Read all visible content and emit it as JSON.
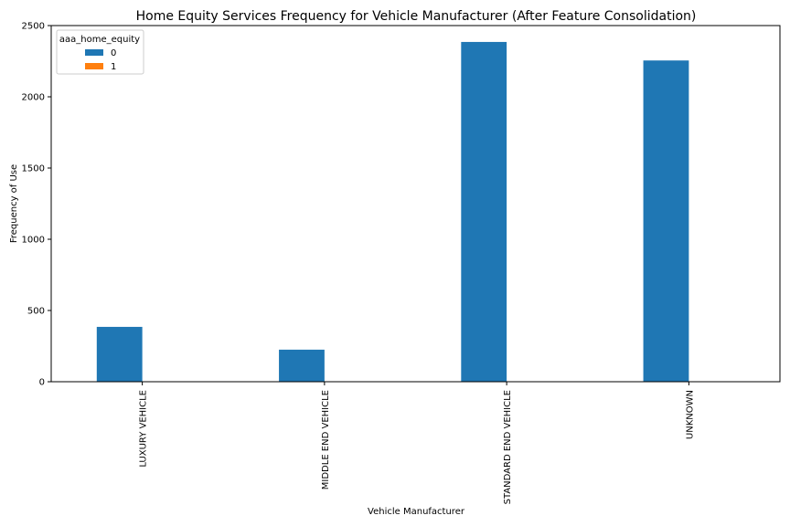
{
  "chart_data": {
    "type": "bar",
    "title": "Home Equity Services Frequency for Vehicle Manufacturer (After Feature Consolidation)",
    "xlabel": "Vehicle Manufacturer",
    "ylabel": "Frequency of Use",
    "categories": [
      "LUXURY VEHICLE",
      "MIDDLE END VEHICLE",
      "STANDARD END VEHICLE",
      "UNKNOWN"
    ],
    "series": [
      {
        "name": "0",
        "color": "#1f77b4",
        "values": [
          385,
          225,
          2385,
          2255
        ]
      },
      {
        "name": "1",
        "color": "#ff7f0e",
        "values": [
          0,
          0,
          0,
          0
        ]
      }
    ],
    "ylim": [
      0,
      2500
    ],
    "yticks": [
      0,
      500,
      1000,
      1500,
      2000,
      2500
    ],
    "grid": false,
    "legend": {
      "title": "aaa_home_equity",
      "position": "top-left"
    }
  }
}
